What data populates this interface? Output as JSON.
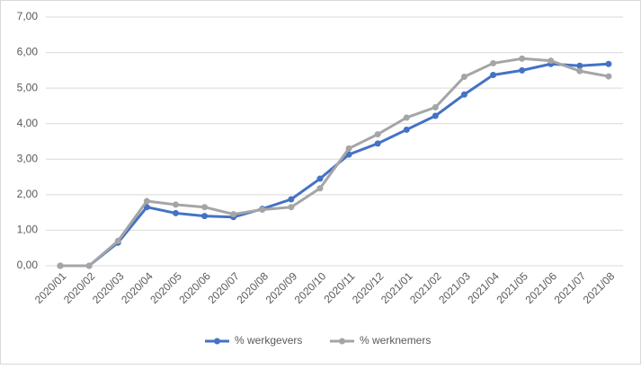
{
  "chart_data": {
    "type": "line",
    "categories": [
      "2020/01",
      "2020/02",
      "2020/03",
      "2020/04",
      "2020/05",
      "2020/06",
      "2020/07",
      "2020/08",
      "2020/09",
      "2020/10",
      "2020/11",
      "2020/12",
      "2021/01",
      "2021/02",
      "2021/03",
      "2021/04",
      "2021/05",
      "2021/06",
      "2021/07",
      "2021/08"
    ],
    "series": [
      {
        "name": "% werkgevers",
        "color": "#4472c4",
        "values": [
          0,
          0,
          0.65,
          1.65,
          1.48,
          1.4,
          1.37,
          1.6,
          1.87,
          2.45,
          3.13,
          3.44,
          3.83,
          4.22,
          4.82,
          5.37,
          5.5,
          5.68,
          5.63,
          5.68
        ]
      },
      {
        "name": "% werknemers",
        "color": "#a5a5a5",
        "values": [
          0,
          0,
          0.7,
          1.82,
          1.72,
          1.65,
          1.45,
          1.58,
          1.65,
          2.18,
          3.3,
          3.7,
          4.17,
          4.46,
          5.32,
          5.7,
          5.83,
          5.77,
          5.48,
          5.33
        ]
      }
    ],
    "ylim": [
      0,
      7
    ],
    "yticks": [
      {
        "value": 0,
        "label": "0,00"
      },
      {
        "value": 1,
        "label": "1,00"
      },
      {
        "value": 2,
        "label": "2,00"
      },
      {
        "value": 3,
        "label": "3,00"
      },
      {
        "value": 4,
        "label": "4,00"
      },
      {
        "value": 5,
        "label": "5,00"
      },
      {
        "value": 6,
        "label": "6,00"
      },
      {
        "value": 7,
        "label": "7,00"
      }
    ],
    "grid": true,
    "legend": "bottom"
  }
}
